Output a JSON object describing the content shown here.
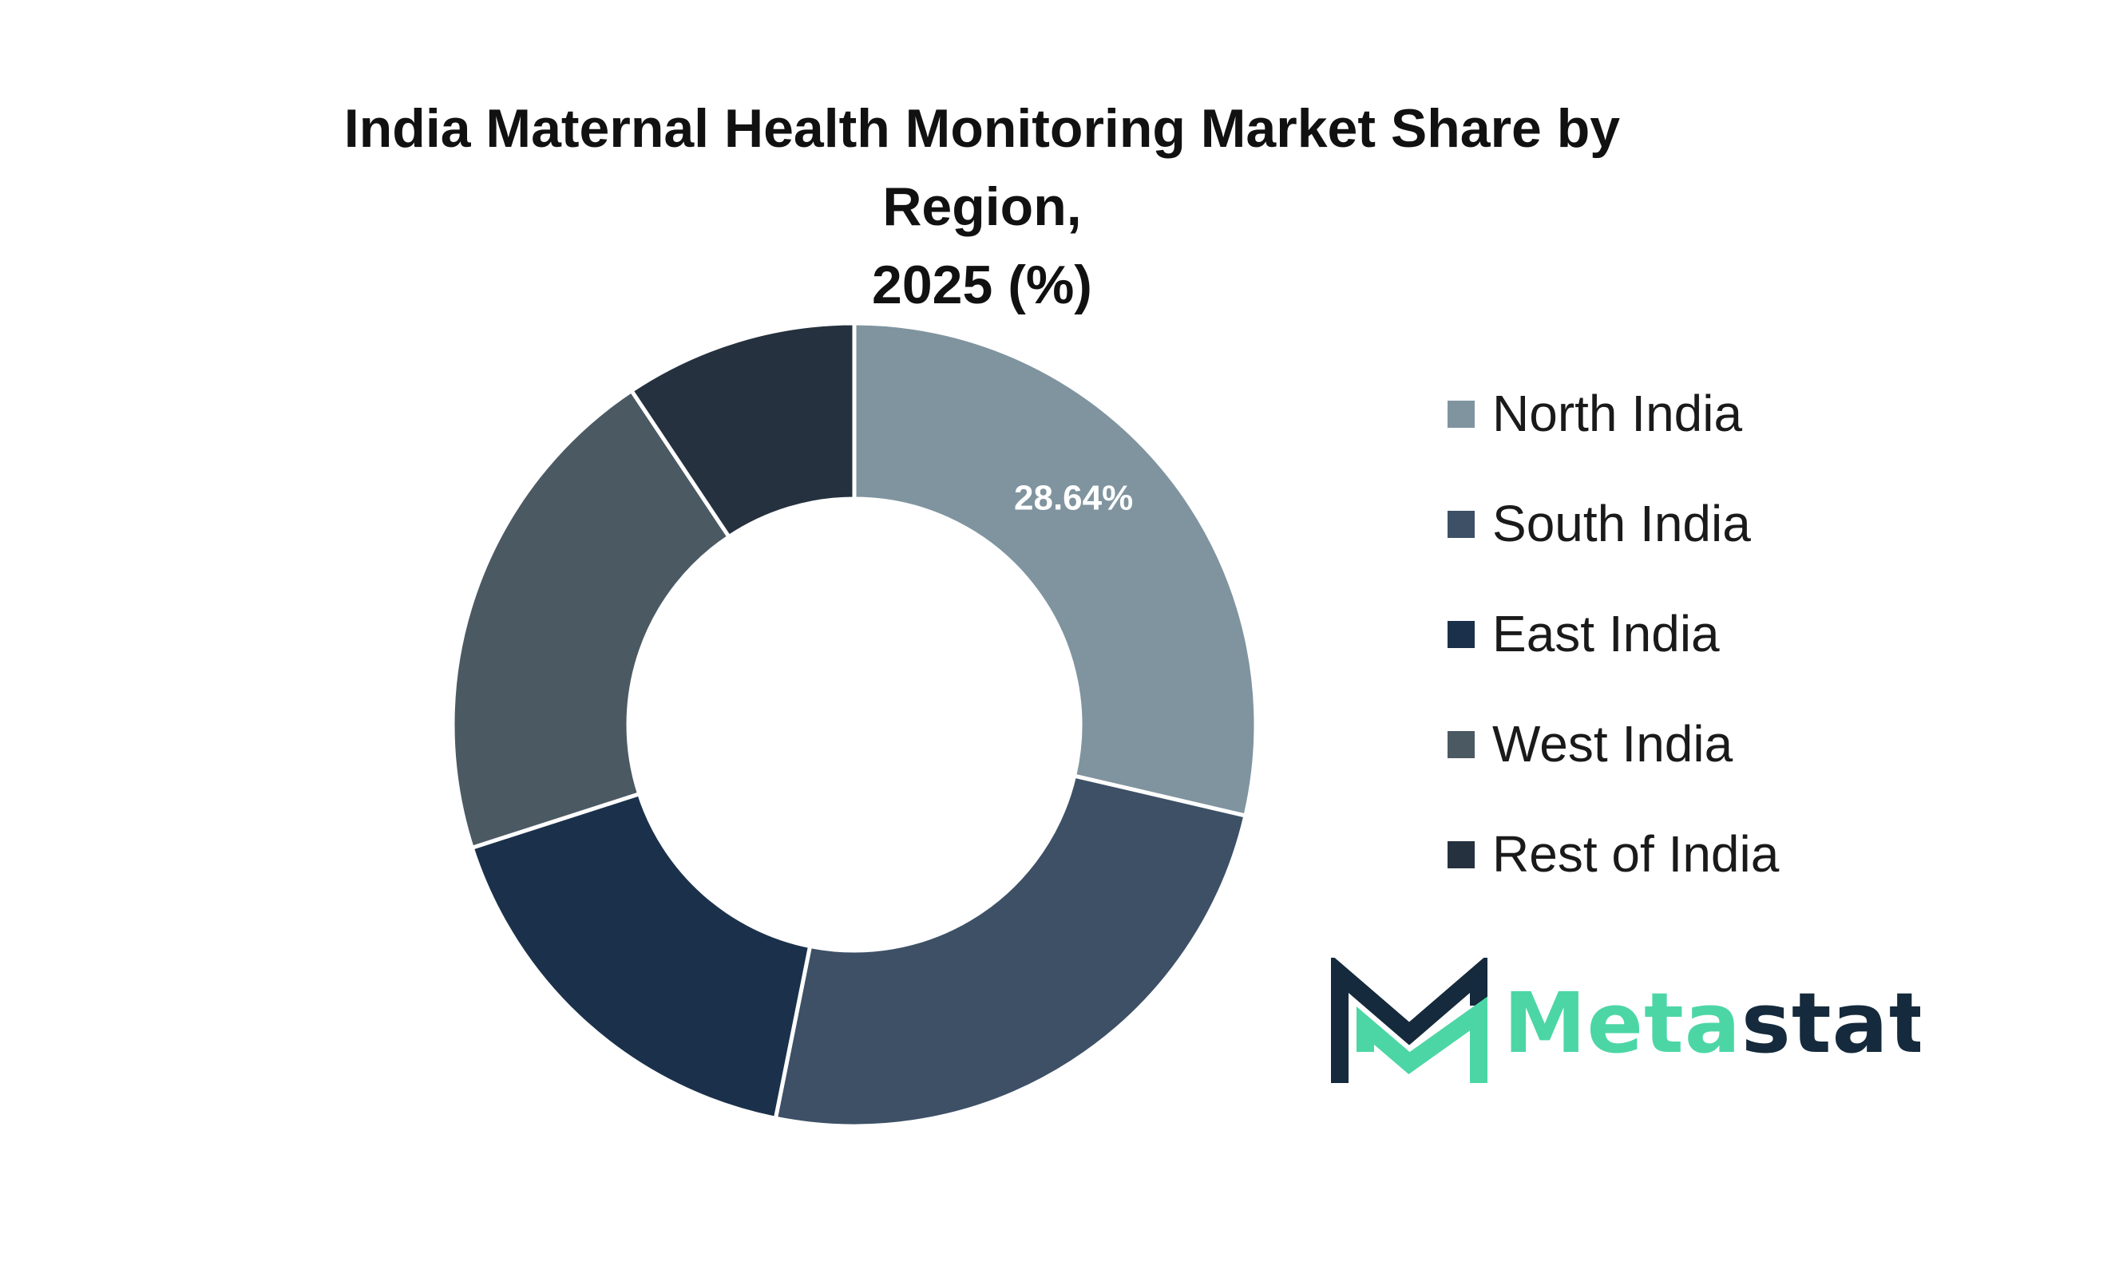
{
  "chart_data": {
    "type": "pie",
    "variant": "donut",
    "title": "India Maternal Health Monitoring Market Share by Region, 2025 (%)",
    "title_lines": [
      "India Maternal Health Monitoring Market Share by Region,",
      "2025 (%)"
    ],
    "categories": [
      "North India",
      "South India",
      "East India",
      "West India",
      "Rest of India"
    ],
    "values": [
      28.64,
      24.5,
      16.9,
      20.6,
      9.36
    ],
    "colors": [
      "#7f949f",
      "#3d5066",
      "#1b314b",
      "#4b5963",
      "#25313e"
    ],
    "data_labels": [
      "28.64%",
      "",
      "",
      "",
      ""
    ],
    "legend": {
      "position": "right",
      "entries": [
        "North India",
        "South India",
        "East India",
        "West India",
        "Rest of India"
      ]
    }
  },
  "logo": {
    "text_part1": "Meta",
    "text_part2": "stat",
    "colors": {
      "mint": "#4cd6a6",
      "navy": "#152a3c"
    }
  }
}
